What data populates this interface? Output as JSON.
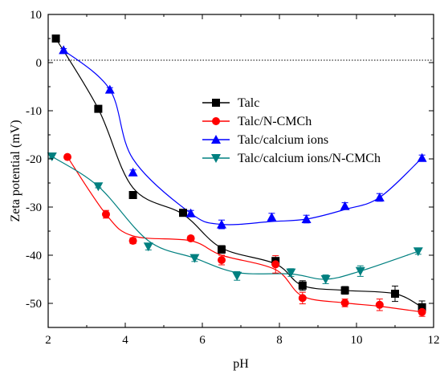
{
  "chart_data": {
    "type": "scatter",
    "title": "",
    "xlabel": "pH",
    "ylabel": "Zeta potential (mV)",
    "xlim": [
      2,
      12
    ],
    "ylim": [
      -55,
      10
    ],
    "xticks": [
      2,
      4,
      6,
      8,
      10,
      12
    ],
    "yticks": [
      10,
      0,
      -10,
      -20,
      -30,
      -40,
      -50
    ],
    "grid": false,
    "legend_position": "center-right",
    "reference_line": {
      "y": 0.5,
      "style": "dotted"
    },
    "series": [
      {
        "name": "Talc",
        "color": "#000000",
        "marker": "square",
        "x": [
          2.2,
          3.3,
          4.2,
          5.5,
          6.5,
          7.9,
          8.6,
          9.7,
          11.0,
          11.7
        ],
        "y": [
          5.0,
          -9.6,
          -27.5,
          -31.2,
          -38.8,
          -41.2,
          -46.3,
          -47.3,
          -48.0,
          -50.8
        ],
        "err": [
          0.3,
          0.4,
          0.6,
          0.7,
          0.8,
          0.7,
          1.0,
          0.8,
          1.6,
          1.3
        ],
        "fit_y": [
          5.0,
          -9.6,
          -26.0,
          -31.5,
          -38.5,
          -41.8,
          -46.3,
          -47.3,
          -48.0,
          -50.8
        ]
      },
      {
        "name": "Talc/N-CMCh",
        "color": "#ff0000",
        "marker": "circle",
        "x": [
          2.5,
          3.5,
          4.2,
          5.7,
          6.5,
          7.9,
          8.6,
          9.7,
          10.6,
          11.7
        ],
        "y": [
          -19.6,
          -31.5,
          -37.0,
          -36.5,
          -41.0,
          -41.9,
          -48.9,
          -49.9,
          -50.3,
          -51.8
        ],
        "err": [
          0.3,
          0.8,
          0.6,
          0.5,
          1.0,
          1.8,
          1.2,
          0.8,
          1.2,
          0.9
        ],
        "fit_y": [
          -19.6,
          -31.5,
          -36.0,
          -37.0,
          -40.0,
          -43.0,
          -48.5,
          -49.9,
          -50.6,
          -51.8
        ]
      },
      {
        "name": "Talc/calcium ions",
        "color": "#0000ff",
        "marker": "triangle-up",
        "x": [
          2.4,
          3.6,
          4.2,
          5.7,
          6.5,
          7.8,
          8.7,
          9.7,
          10.6,
          11.7
        ],
        "y": [
          2.6,
          -5.6,
          -22.8,
          -31.3,
          -33.6,
          -32.1,
          -32.5,
          -29.8,
          -28.0,
          -19.8
        ],
        "err": [
          0.3,
          0.4,
          0.5,
          0.6,
          0.9,
          0.8,
          0.8,
          0.7,
          0.8,
          0.6
        ],
        "fit_y": [
          2.6,
          -5.6,
          -20.0,
          -31.3,
          -33.6,
          -33.0,
          -32.5,
          -30.5,
          -28.0,
          -19.8
        ]
      },
      {
        "name": "Talc/calcium ions/N-CMCh",
        "color": "#008080",
        "marker": "triangle-down",
        "x": [
          2.1,
          3.3,
          4.6,
          5.8,
          6.9,
          8.3,
          9.2,
          10.1,
          11.6
        ],
        "y": [
          -19.5,
          -25.7,
          -38.2,
          -40.6,
          -44.3,
          -43.6,
          -45.0,
          -43.3,
          -39.2
        ],
        "err": [
          0.3,
          0.3,
          0.7,
          0.7,
          0.9,
          0.8,
          0.9,
          1.1,
          0.6
        ],
        "fit_y": [
          -19.5,
          -25.7,
          -37.0,
          -40.6,
          -43.6,
          -43.9,
          -45.0,
          -43.3,
          -39.2
        ]
      }
    ]
  }
}
